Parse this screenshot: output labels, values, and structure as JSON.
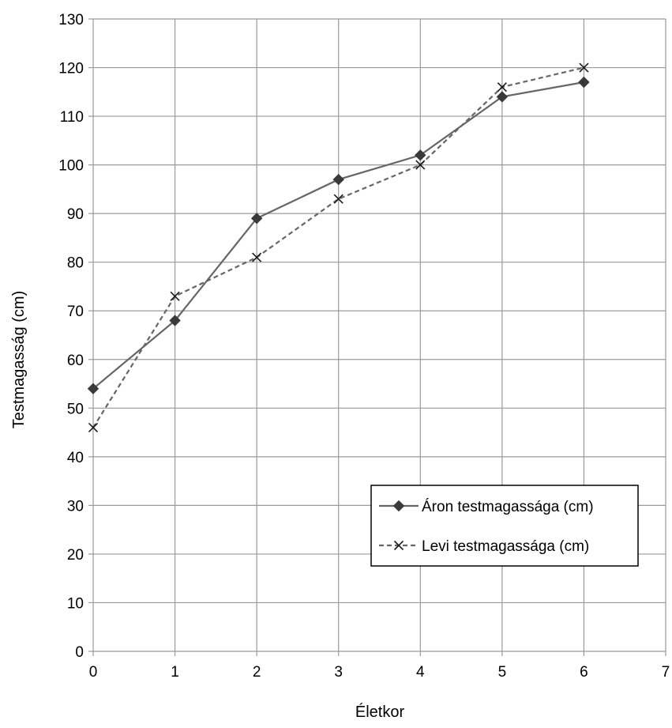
{
  "chart_data": {
    "type": "line",
    "title": "",
    "xlabel": "Életkor",
    "ylabel": "Testmagasság (cm)",
    "xlim": [
      0,
      7
    ],
    "ylim": [
      0,
      130
    ],
    "x_ticks": [
      "0",
      "1",
      "2",
      "3",
      "4",
      "5",
      "6",
      "7"
    ],
    "y_ticks": [
      "0",
      "10",
      "20",
      "30",
      "40",
      "50",
      "60",
      "70",
      "80",
      "90",
      "100",
      "110",
      "120",
      "130"
    ],
    "grid": true,
    "legend_position": "bottom-right",
    "x": [
      0,
      1,
      2,
      3,
      4,
      5,
      6
    ],
    "series": [
      {
        "name": "Áron testmagassága (cm)",
        "values": [
          54,
          68,
          89,
          97,
          102,
          114,
          117
        ],
        "color": "#666666",
        "line_style": "solid",
        "marker": "diamond"
      },
      {
        "name": "Levi testmagassága (cm)",
        "values": [
          46,
          73,
          81,
          93,
          100,
          116,
          120
        ],
        "color": "#666666",
        "line_style": "dashed",
        "marker": "x"
      }
    ]
  }
}
